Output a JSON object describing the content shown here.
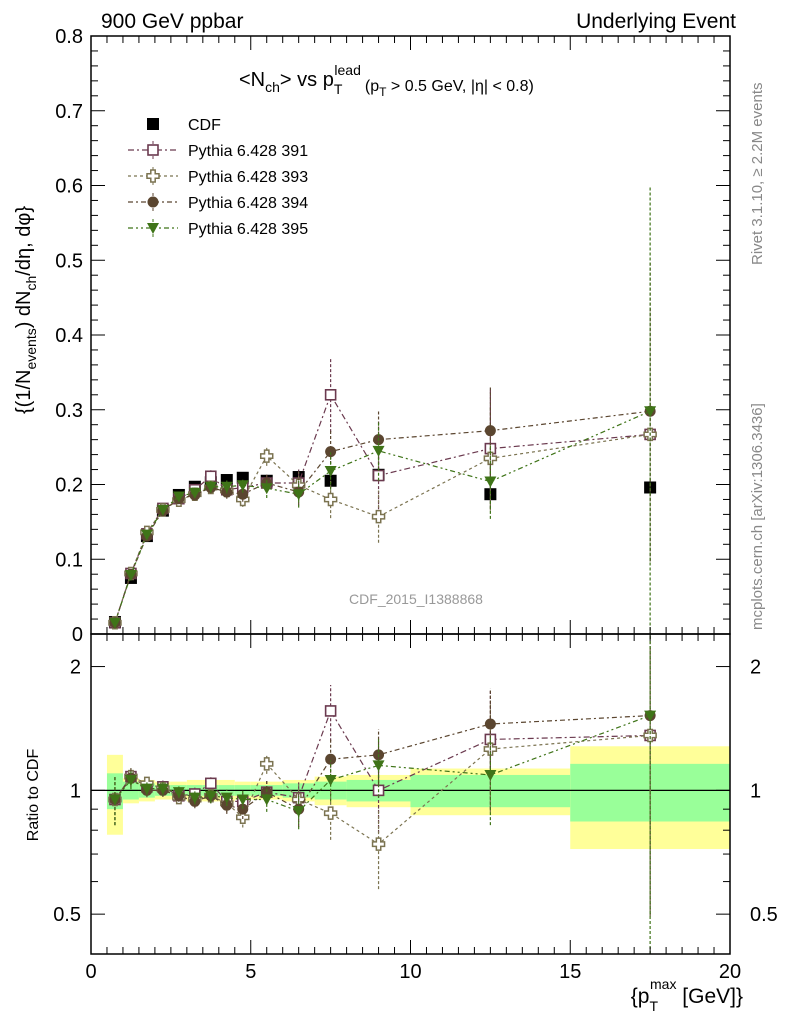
{
  "header": {
    "left": "900 GeV ppbar",
    "right": "Underlying Event"
  },
  "side_labels": {
    "rivet": "Rivet 3.1.10, ≥ 2.2M events",
    "mcplots": "mcplots.cern.ch [arXiv:1306.3436]"
  },
  "watermark": "CDF_2015_I1388868",
  "colors": {
    "cdf": "#000000",
    "p391": "#6b3a4f",
    "p393": "#7b7350",
    "p394": "#5b4630",
    "p395": "#3f7418",
    "band_yellow": "#ffff99",
    "band_green": "#99ff99"
  },
  "chart_data": [
    {
      "type": "scatter",
      "title": "<N_ch> vs p_T^lead (p_T > 0.5 GeV, |η| < 0.8)",
      "title_parts": {
        "main": "<N",
        "sub1": "ch",
        "mid": "> vs p",
        "sub2": "T",
        "sup2": "lead",
        "cut": "(p",
        "cut_sub": "T",
        "cut_rest": " > 0.5 GeV, |η| < 0.8)"
      },
      "ylabel": "{(1/N_events) dN_ch/dη, dφ}",
      "ylabel_parts": {
        "a": "{(1/N",
        "a_sub": "events",
        "b": ") dN",
        "b_sub": "ch",
        "c": "/dη, dφ}"
      },
      "xlim": [
        0,
        20
      ],
      "ylim": [
        0,
        0.8
      ],
      "yticks": [
        "0",
        "0.1",
        "0.2",
        "0.3",
        "0.4",
        "0.5",
        "0.6",
        "0.7",
        "0.8"
      ],
      "legend_placement": "top-left",
      "series": [
        {
          "name": "CDF",
          "marker": "filled-square",
          "x": [
            0.75,
            1.25,
            1.75,
            2.25,
            2.75,
            3.25,
            3.75,
            4.25,
            4.75,
            5.5,
            6.5,
            7.5,
            9.0,
            12.5,
            17.5
          ],
          "y": [
            0.016,
            0.075,
            0.131,
            0.165,
            0.186,
            0.197,
            0.203,
            0.206,
            0.209,
            0.205,
            0.21,
            0.205,
            0.213,
            0.187,
            0.196
          ],
          "err": [
            0.002,
            0.004,
            0.005,
            0.005,
            0.005,
            0.005,
            0.005,
            0.006,
            0.006,
            0.006,
            0.008,
            0.008,
            0.008,
            0.008,
            0.008
          ]
        },
        {
          "name": "Pythia 6.428 391",
          "marker": "open-square",
          "x": [
            0.75,
            1.25,
            1.75,
            2.25,
            2.75,
            3.25,
            3.75,
            4.25,
            4.75,
            5.5,
            6.5,
            7.5,
            9.0,
            12.5,
            17.5
          ],
          "y": [
            0.015,
            0.081,
            0.134,
            0.168,
            0.181,
            0.193,
            0.211,
            0.193,
            0.196,
            0.202,
            0.202,
            0.32,
            0.212,
            0.248,
            0.267
          ],
          "err": [
            0.002,
            0.004,
            0.005,
            0.006,
            0.006,
            0.007,
            0.008,
            0.009,
            0.01,
            0.013,
            0.018,
            0.05,
            0.045,
            0.08,
            0.17
          ]
        },
        {
          "name": "Pythia 6.428 393",
          "marker": "open-cross",
          "x": [
            0.75,
            1.25,
            1.75,
            2.25,
            2.75,
            3.25,
            3.75,
            4.25,
            4.75,
            5.5,
            6.5,
            7.5,
            9.0,
            12.5,
            17.5
          ],
          "y": [
            0.015,
            0.081,
            0.136,
            0.166,
            0.179,
            0.187,
            0.196,
            0.192,
            0.18,
            0.238,
            0.199,
            0.18,
            0.157,
            0.235,
            0.267
          ],
          "err": [
            0.002,
            0.004,
            0.005,
            0.006,
            0.006,
            0.007,
            0.008,
            0.009,
            0.01,
            0.013,
            0.018,
            0.025,
            0.035,
            0.07,
            0.17
          ]
        },
        {
          "name": "Pythia 6.428 394",
          "marker": "filled-circle",
          "x": [
            0.75,
            1.25,
            1.75,
            2.25,
            2.75,
            3.25,
            3.75,
            4.25,
            4.75,
            5.5,
            6.5,
            7.5,
            9.0,
            12.5,
            17.5
          ],
          "y": [
            0.015,
            0.08,
            0.131,
            0.165,
            0.181,
            0.186,
            0.196,
            0.19,
            0.187,
            0.202,
            0.19,
            0.244,
            0.26,
            0.272,
            0.298
          ],
          "err": [
            0.002,
            0.004,
            0.005,
            0.006,
            0.006,
            0.007,
            0.008,
            0.009,
            0.01,
            0.013,
            0.018,
            0.03,
            0.04,
            0.06,
            0.2
          ]
        },
        {
          "name": "Pythia 6.428 395",
          "marker": "filled-triangle-down",
          "x": [
            0.75,
            1.25,
            1.75,
            2.25,
            2.75,
            3.25,
            3.75,
            4.25,
            4.75,
            5.5,
            6.5,
            7.5,
            9.0,
            12.5,
            17.5
          ],
          "y": [
            0.015,
            0.079,
            0.133,
            0.166,
            0.184,
            0.189,
            0.197,
            0.197,
            0.199,
            0.195,
            0.187,
            0.218,
            0.245,
            0.204,
            0.298
          ],
          "err": [
            0.002,
            0.004,
            0.005,
            0.006,
            0.006,
            0.007,
            0.008,
            0.009,
            0.01,
            0.013,
            0.018,
            0.025,
            0.04,
            0.05,
            0.3
          ]
        }
      ]
    },
    {
      "type": "scatter",
      "ylabel": "Ratio to CDF",
      "xlabel": "{p_T^max [GeV]}",
      "xlabel_parts": {
        "a": "{p",
        "sub": "T",
        "sup": "max",
        "b": " [GeV]}"
      },
      "xlim": [
        0,
        20
      ],
      "ylim": [
        0.4,
        2.4
      ],
      "ylog": true,
      "yticks": [
        "0.5",
        "1",
        "2"
      ],
      "xticks": [
        "0",
        "5",
        "10",
        "15",
        "20"
      ],
      "bands": {
        "edges": [
          0.5,
          1.0,
          1.5,
          2.0,
          2.5,
          3.0,
          3.5,
          4.0,
          4.5,
          5.0,
          6.0,
          7.0,
          8.0,
          10.0,
          15.0,
          20.0
        ],
        "green": [
          0.1,
          0.05,
          0.04,
          0.03,
          0.03,
          0.03,
          0.03,
          0.03,
          0.03,
          0.03,
          0.04,
          0.05,
          0.06,
          0.09,
          0.16
        ],
        "yellow": [
          0.22,
          0.07,
          0.06,
          0.05,
          0.05,
          0.06,
          0.06,
          0.06,
          0.05,
          0.05,
          0.06,
          0.08,
          0.09,
          0.13,
          0.28
        ]
      },
      "series": [
        {
          "name": "Pythia 6.428 391",
          "x": [
            0.75,
            1.25,
            1.75,
            2.25,
            2.75,
            3.25,
            3.75,
            4.25,
            4.75,
            5.5,
            6.5,
            7.5,
            9.0,
            12.5,
            17.5
          ],
          "y": [
            0.95,
            1.08,
            1.02,
            1.02,
            0.97,
            0.98,
            1.04,
            0.94,
            0.94,
            0.99,
            0.96,
            1.56,
            1.0,
            1.33,
            1.36
          ]
        },
        {
          "name": "Pythia 6.428 393",
          "x": [
            0.75,
            1.25,
            1.75,
            2.25,
            2.75,
            3.25,
            3.75,
            4.25,
            4.75,
            5.5,
            6.5,
            7.5,
            9.0,
            12.5,
            17.5
          ],
          "y": [
            0.95,
            1.08,
            1.04,
            1.01,
            0.96,
            0.95,
            0.97,
            0.93,
            0.86,
            1.16,
            0.95,
            0.88,
            0.74,
            1.26,
            1.36
          ]
        },
        {
          "name": "Pythia 6.428 394",
          "x": [
            0.75,
            1.25,
            1.75,
            2.25,
            2.75,
            3.25,
            3.75,
            4.25,
            4.75,
            5.5,
            6.5,
            7.5,
            9.0,
            12.5,
            17.5
          ],
          "y": [
            0.95,
            1.07,
            1.0,
            1.0,
            0.97,
            0.94,
            0.97,
            0.92,
            0.9,
            0.99,
            0.9,
            1.19,
            1.22,
            1.45,
            1.52
          ]
        },
        {
          "name": "Pythia 6.428 395",
          "x": [
            0.75,
            1.25,
            1.75,
            2.25,
            2.75,
            3.25,
            3.75,
            4.25,
            4.75,
            5.5,
            6.5,
            7.5,
            9.0,
            12.5,
            17.5
          ],
          "y": [
            0.95,
            1.06,
            1.01,
            1.01,
            0.99,
            0.96,
            0.97,
            0.96,
            0.95,
            0.95,
            0.89,
            1.06,
            1.15,
            1.09,
            1.52
          ]
        }
      ]
    }
  ]
}
